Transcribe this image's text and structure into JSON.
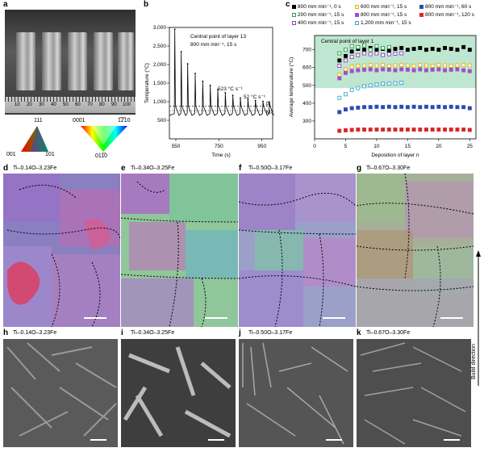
{
  "panel_letters": {
    "a": "a",
    "b": "b",
    "c": "c",
    "d": "d",
    "e": "e",
    "f": "f",
    "g": "g",
    "h": "h",
    "i": "i",
    "j": "j",
    "k": "k"
  },
  "panel_a": {
    "ruler_numbers": [
      "10",
      "20",
      "30",
      "40",
      "50",
      "60",
      "70",
      "80",
      "90",
      "100"
    ],
    "ipf_cubic": {
      "top": "111",
      "left": "001",
      "right": "101"
    },
    "ipf_hex": {
      "top_left": "0001",
      "top_right": "1̅2̅10",
      "bottom": "011̅0"
    }
  },
  "panel_b": {
    "annotation_line1": "Central point of layer 13",
    "annotation_line2": "800 mm min⁻¹, 15 s",
    "rate_label_1": "523 °C s⁻¹",
    "rate_label_2": "52 °C s⁻¹",
    "beta_label": "βₜ",
    "ms_label": "Mₛ"
  },
  "panel_c": {
    "annotation": "Central point of layer 1",
    "colors": {
      "band": "#bfe6d0"
    }
  },
  "ebsd_titles": [
    "Ti–0.14O–3.23Fe",
    "Ti–0.34O–3.25Fe",
    "Ti–0.50O–3.17Fe",
    "Ti–0.67O–3.30Fe"
  ],
  "sem_titles": [
    "Ti–0.14O–3.23Fe",
    "Ti–0.34O–3.25Fe",
    "Ti–0.50O–3.17Fe",
    "Ti–0.67O–3.30Fe"
  ],
  "build_direction": "Build direction",
  "chart_data": [
    {
      "type": "line",
      "panel": "b",
      "title": "",
      "xlabel": "Time (s)",
      "ylabel": "Temperature (°C)",
      "xlim": [
        520,
        1000
      ],
      "ylim": [
        0,
        3000
      ],
      "x_ticks": [
        550,
        750,
        950
      ],
      "x_tick_labels": [
        "550",
        "750",
        "950"
      ],
      "y_ticks": [
        500,
        1000,
        1500,
        2000,
        2500,
        3000
      ],
      "y_tick_labels": [
        "500",
        "1,000",
        "1,500",
        "2,000",
        "2,500",
        "3,000"
      ],
      "beta_transus": 880,
      "ms_temperature": 760,
      "peaks": [
        {
          "t": 545,
          "T": 2950
        },
        {
          "t": 575,
          "T": 2350
        },
        {
          "t": 605,
          "T": 2020
        },
        {
          "t": 640,
          "T": 1760
        },
        {
          "t": 675,
          "T": 1550
        },
        {
          "t": 710,
          "T": 1440
        },
        {
          "t": 745,
          "T": 1330
        },
        {
          "t": 780,
          "T": 1240
        },
        {
          "t": 815,
          "T": 1170
        },
        {
          "t": 850,
          "T": 1100
        },
        {
          "t": 885,
          "T": 1060
        },
        {
          "t": 920,
          "T": 1030
        },
        {
          "t": 955,
          "T": 1010
        },
        {
          "t": 985,
          "T": 990
        }
      ],
      "baseline": 630
    },
    {
      "type": "scatter",
      "panel": "c",
      "title": "",
      "xlabel": "Deposition of layer n",
      "ylabel": "Average temperature (°C)",
      "xlim": [
        0,
        26
      ],
      "ylim": [
        200,
        780
      ],
      "x_ticks": [
        0,
        5,
        10,
        15,
        20,
        25
      ],
      "x_tick_labels": [
        "0",
        "5",
        "10",
        "15",
        "20",
        "25"
      ],
      "y_ticks": [
        300,
        400,
        500,
        600,
        700
      ],
      "y_tick_labels": [
        "300",
        "400",
        "500",
        "600",
        "700"
      ],
      "shaded_band": [
        485,
        815
      ],
      "series": [
        {
          "name": "800 mm min⁻¹, 0 s",
          "marker": "square",
          "filled": true,
          "color": "#000000",
          "x": [
            4,
            5,
            6,
            7,
            8,
            9,
            10,
            11,
            12,
            13,
            14,
            15,
            16,
            17,
            18,
            19,
            20,
            21,
            22,
            23,
            24,
            25
          ],
          "y": [
            640,
            665,
            690,
            705,
            700,
            710,
            700,
            705,
            695,
            705,
            710,
            700,
            705,
            710,
            700,
            705,
            700,
            710,
            705,
            700,
            715,
            700
          ]
        },
        {
          "name": "200 mm min⁻¹, 15 s",
          "marker": "square",
          "filled": false,
          "color": "#2ca048",
          "x": [
            4,
            5,
            6,
            7,
            8,
            9,
            10,
            11,
            12
          ],
          "y": [
            680,
            700,
            720,
            715,
            725,
            700,
            720,
            710,
            715
          ]
        },
        {
          "name": "400 mm min⁻¹, 15 s",
          "marker": "square",
          "filled": false,
          "color": "#9b3fc0",
          "x": [
            4,
            5,
            6,
            7,
            8,
            9,
            10,
            11,
            12,
            13,
            14
          ],
          "y": [
            610,
            640,
            660,
            670,
            680,
            675,
            680,
            670,
            675,
            678,
            680
          ]
        },
        {
          "name": "600 mm min⁻¹, 15 s",
          "marker": "square",
          "filled": false,
          "color": "#e8b400",
          "x": [
            4,
            5,
            6,
            7,
            8,
            9,
            10,
            11,
            12,
            13,
            14,
            15,
            16,
            17,
            18,
            19,
            20,
            21,
            22,
            23,
            24,
            25
          ],
          "y": [
            560,
            590,
            605,
            610,
            612,
            615,
            612,
            615,
            610,
            612,
            615,
            612,
            610,
            615,
            612,
            610,
            615,
            612,
            610,
            612,
            615,
            612
          ]
        },
        {
          "name": "800 mm min⁻¹, 15 s",
          "marker": "square",
          "filled": true,
          "color": "#a04fc8",
          "x": [
            4,
            5,
            6,
            7,
            8,
            9,
            10,
            11,
            12,
            13,
            14,
            15,
            16,
            17,
            18,
            19,
            20,
            21,
            22,
            23,
            24,
            25
          ],
          "y": [
            540,
            570,
            580,
            585,
            588,
            590,
            585,
            590,
            588,
            585,
            590,
            588,
            585,
            590,
            585,
            588,
            590,
            585,
            588,
            590,
            585,
            580
          ]
        },
        {
          "name": "1,200 mm min⁻¹, 15 s",
          "marker": "square",
          "filled": false,
          "color": "#3aa5d8",
          "x": [
            4,
            5,
            6,
            7,
            8,
            9,
            10,
            11,
            12,
            13,
            14
          ],
          "y": [
            430,
            450,
            475,
            485,
            495,
            500,
            505,
            510,
            510,
            512,
            515
          ]
        },
        {
          "name": "800 mm min⁻¹, 60 s",
          "marker": "square",
          "filled": true,
          "color": "#2b4bb0",
          "x": [
            4,
            5,
            6,
            7,
            8,
            9,
            10,
            11,
            12,
            13,
            14,
            15,
            16,
            17,
            18,
            19,
            20,
            21,
            22,
            23,
            24,
            25
          ],
          "y": [
            350,
            365,
            372,
            375,
            378,
            378,
            380,
            378,
            380,
            378,
            380,
            378,
            380,
            378,
            380,
            378,
            380,
            378,
            380,
            378,
            378,
            372
          ]
        },
        {
          "name": "800 mm min⁻¹, 120 s",
          "marker": "square",
          "filled": true,
          "color": "#d62828",
          "x": [
            4,
            5,
            6,
            7,
            8,
            9,
            10,
            11,
            12,
            13,
            14,
            15,
            16,
            17,
            18,
            19,
            20,
            21,
            22,
            23,
            24,
            25
          ],
          "y": [
            245,
            248,
            250,
            252,
            252,
            252,
            252,
            252,
            252,
            252,
            252,
            252,
            252,
            252,
            252,
            252,
            252,
            252,
            252,
            252,
            252,
            250
          ]
        }
      ],
      "legend_position": "top"
    }
  ]
}
